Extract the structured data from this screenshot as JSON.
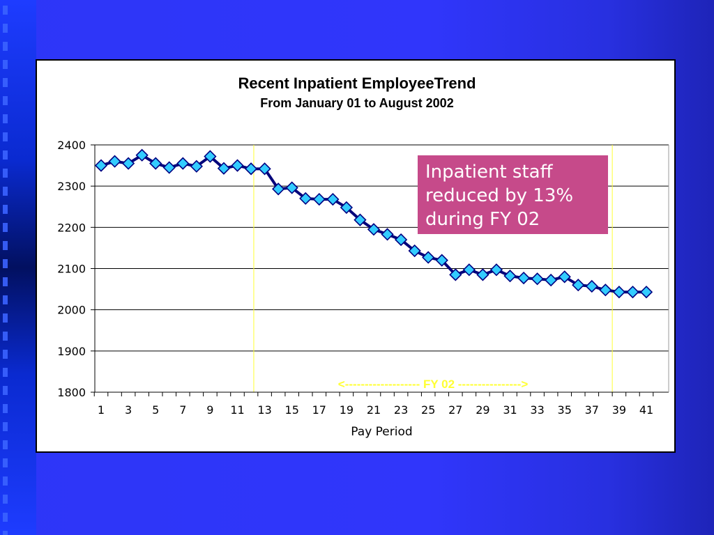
{
  "theme": {
    "panel_bg": "#ffffff",
    "line_color": "#00007a",
    "marker_fill": "#33ccff",
    "marker_stroke": "#000080",
    "fy_marker_color": "#ffff33",
    "callout_bg": "#c64a8a",
    "callout_text_color": "#ffffff"
  },
  "chart_data": {
    "type": "line",
    "title": "Recent Inpatient EmployeeTrend",
    "subtitle": "From January 01 to August 2002",
    "xlabel": "Pay Period",
    "ylabel": "",
    "x_ticks": [
      "1",
      "3",
      "5",
      "7",
      "9",
      "11",
      "13",
      "15",
      "17",
      "19",
      "21",
      "23",
      "25",
      "27",
      "29",
      "31",
      "33",
      "35",
      "37",
      "39",
      "41"
    ],
    "y_ticks": [
      "1800",
      "1900",
      "2000",
      "2100",
      "2200",
      "2300",
      "2400"
    ],
    "ylim": [
      1800,
      2400
    ],
    "xlim": [
      1,
      41
    ],
    "grid": true,
    "x": [
      1,
      2,
      3,
      4,
      5,
      6,
      7,
      8,
      9,
      10,
      11,
      12,
      13,
      14,
      15,
      16,
      17,
      18,
      19,
      20,
      21,
      22,
      23,
      24,
      25,
      26,
      27,
      28,
      29,
      30,
      31,
      32,
      33,
      34,
      35,
      36,
      37,
      38,
      39,
      40,
      41
    ],
    "series": [
      {
        "values": [
          2350,
          2360,
          2355,
          2375,
          2355,
          2345,
          2355,
          2348,
          2372,
          2343,
          2350,
          2342,
          2342,
          2293,
          2296,
          2270,
          2268,
          2268,
          2248,
          2218,
          2195,
          2183,
          2170,
          2143,
          2127,
          2120,
          2085,
          2097,
          2085,
          2097,
          2082,
          2077,
          2075,
          2072,
          2080,
          2060,
          2057,
          2048,
          2043,
          2043,
          2043
        ]
      }
    ],
    "fy_range": [
      12.2,
      38.5
    ],
    "fy_label": "<------------------- FY 02 ---------------->",
    "annotation": {
      "lines": [
        "Inpatient staff",
        "reduced by 13%",
        "during FY 02"
      ]
    }
  }
}
